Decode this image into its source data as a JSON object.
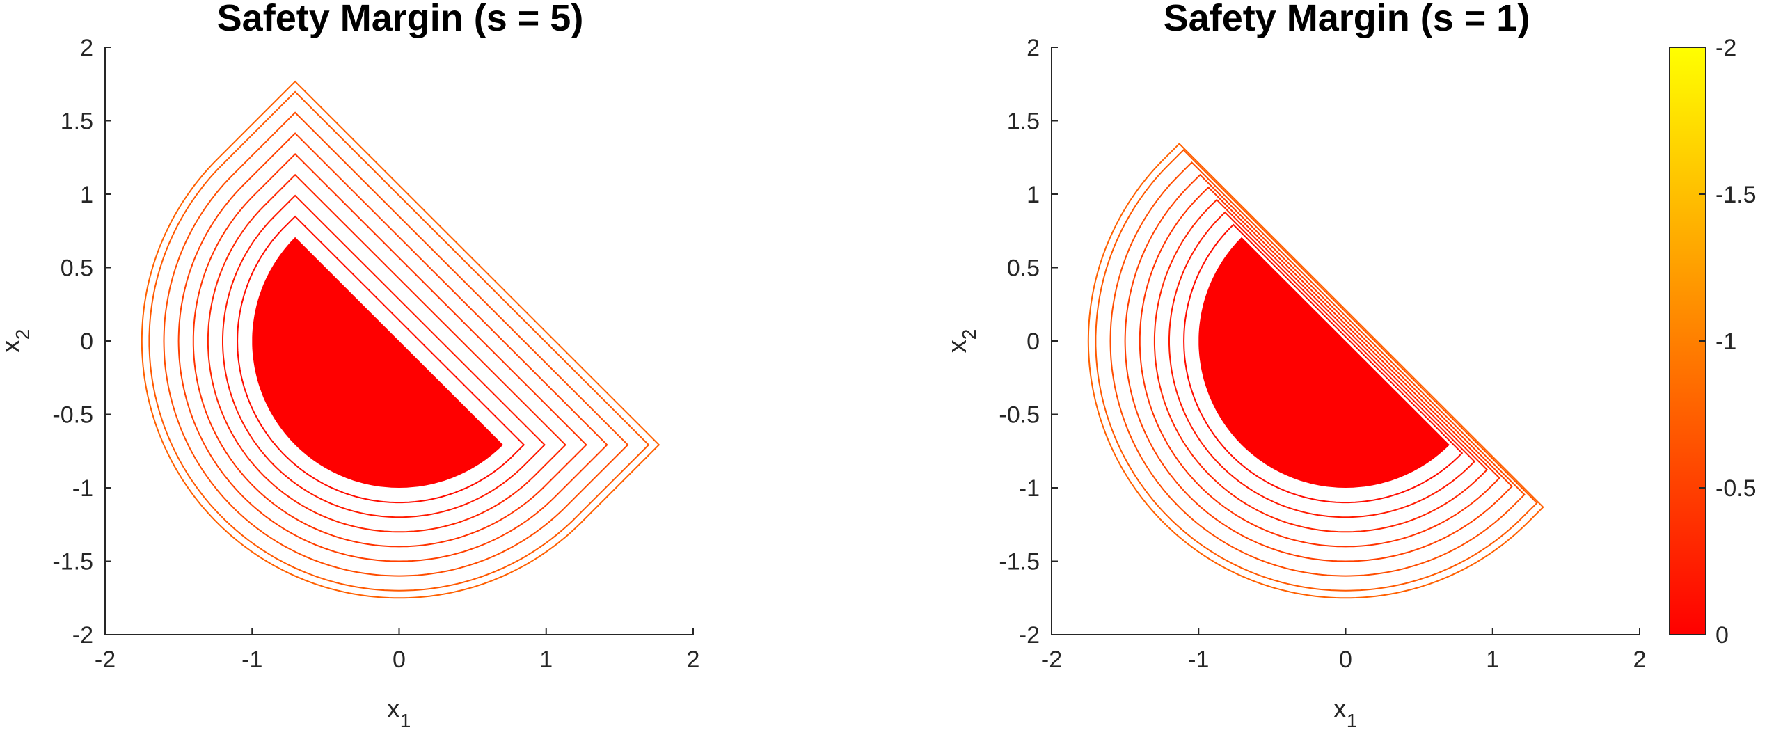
{
  "colormap": {
    "low_color": "#ff0000",
    "high_color": "#ffff00",
    "background": "#ffffff"
  },
  "chart_data": [
    {
      "type": "contour",
      "title": "Safety Margin (s = 5)",
      "xlabel": {
        "base": "x",
        "sub": "1"
      },
      "ylabel": {
        "base": "x",
        "sub": "2"
      },
      "xlim": [
        -2,
        2
      ],
      "ylim": [
        -2,
        2
      ],
      "xticks": [
        "-2",
        "-1",
        "0",
        "1",
        "2"
      ],
      "yticks": [
        "-2",
        "-1.5",
        "-1",
        "-0.5",
        "0",
        "0.5",
        "1",
        "1.5",
        "2"
      ],
      "grid": false,
      "obstacle": {
        "shape": "half-disk",
        "radius": 1,
        "chord_endpoints": [
          [
            -0.707,
            0.707
          ],
          [
            0.707,
            -0.707
          ]
        ],
        "fill": "#ff0000"
      },
      "chord_extension_factor": 1.0,
      "contour_levels": [
        -0.1,
        -0.2,
        -0.3,
        -0.4,
        -0.5,
        -0.6,
        -0.7,
        -0.75
      ]
    },
    {
      "type": "contour",
      "title": "Safety Margin (s = 1)",
      "xlabel": {
        "base": "x",
        "sub": "1"
      },
      "ylabel": {
        "base": "x",
        "sub": "2"
      },
      "xlim": [
        -2,
        2
      ],
      "ylim": [
        -2,
        2
      ],
      "xticks": [
        "-2",
        "-1",
        "0",
        "1",
        "2"
      ],
      "yticks": [
        "-2",
        "-1.5",
        "-1",
        "-0.5",
        "0",
        "0.5",
        "1",
        "1.5",
        "2"
      ],
      "grid": false,
      "obstacle": {
        "shape": "half-disk",
        "radius": 1,
        "chord_endpoints": [
          [
            -0.707,
            0.707
          ],
          [
            0.707,
            -0.707
          ]
        ],
        "fill": "#ff0000"
      },
      "chord_extension_factor": 0.2,
      "contour_levels": [
        -0.1,
        -0.2,
        -0.3,
        -0.4,
        -0.5,
        -0.6,
        -0.7,
        -0.75
      ]
    }
  ],
  "colorbar": {
    "range": [
      -2,
      0
    ],
    "tick_values": [
      -2,
      -1.5,
      -1,
      -0.5,
      0
    ],
    "tick_labels": [
      "-2",
      "-1.5",
      "-1",
      "-0.5",
      "0"
    ]
  }
}
